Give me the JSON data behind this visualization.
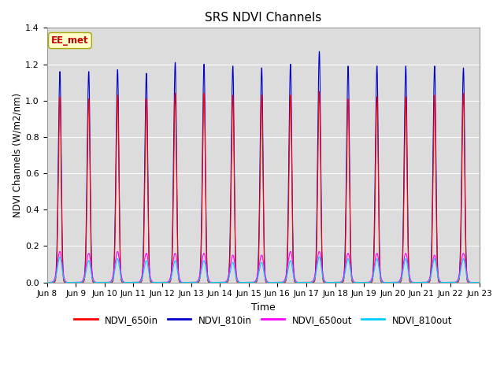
{
  "title": "SRS NDVI Channels",
  "xlabel": "Time",
  "ylabel": "NDVI Channels (W/m2/nm)",
  "ylim": [
    0.0,
    1.4
  ],
  "yticks": [
    0.0,
    0.2,
    0.4,
    0.6,
    0.8,
    1.0,
    1.2,
    1.4
  ],
  "xtick_labels": [
    "Jun 8",
    "Jun 9",
    "Jun 10",
    "Jun 11",
    "Jun 12",
    "Jun 13",
    "Jun 14",
    "Jun 15",
    "Jun 16",
    "Jun 17",
    "Jun 18",
    "Jun 19",
    "Jun 20",
    "Jun 21",
    "Jun 22",
    "Jun 23"
  ],
  "colors": {
    "NDVI_650in": "#ff0000",
    "NDVI_810in": "#0000cc",
    "NDVI_650out": "#ff00ff",
    "NDVI_810out": "#00ccff"
  },
  "annotation_text": "EE_met",
  "annotation_color": "#cc0000",
  "bg_color": "#dcdcdc",
  "grid_color": "#ffffff"
}
